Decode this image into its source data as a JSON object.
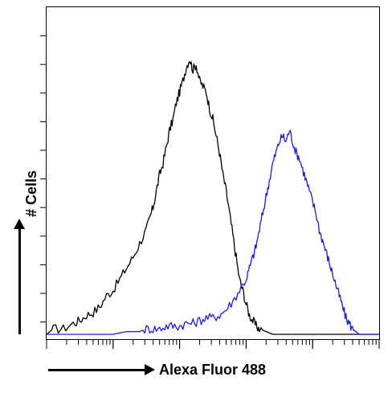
{
  "chart_data": {
    "type": "line",
    "title": "",
    "xlabel": "Alexa Fluor 488",
    "ylabel": "# Cells",
    "xlim": [
      0,
      1
    ],
    "ylim": [
      0,
      1
    ],
    "grid": false,
    "x_scale": "log",
    "series": [
      {
        "color": "#000000",
        "x": [
          0.0,
          0.02,
          0.05,
          0.08,
          0.1,
          0.12,
          0.14,
          0.16,
          0.18,
          0.2,
          0.22,
          0.24,
          0.26,
          0.28,
          0.3,
          0.31,
          0.32,
          0.33,
          0.34,
          0.35,
          0.36,
          0.37,
          0.38,
          0.39,
          0.4,
          0.41,
          0.42,
          0.43,
          0.44,
          0.45,
          0.46,
          0.47,
          0.48,
          0.49,
          0.5,
          0.51,
          0.52,
          0.53,
          0.54,
          0.55,
          0.56,
          0.57,
          0.58,
          0.59,
          0.6,
          0.61,
          0.62,
          0.63,
          0.64,
          0.66,
          0.68,
          0.7,
          0.72,
          1.0
        ],
        "values": [
          0.0,
          0.02,
          0.02,
          0.04,
          0.05,
          0.07,
          0.08,
          0.1,
          0.14,
          0.16,
          0.2,
          0.24,
          0.28,
          0.33,
          0.38,
          0.42,
          0.46,
          0.52,
          0.58,
          0.62,
          0.68,
          0.74,
          0.78,
          0.84,
          0.88,
          0.92,
          0.97,
          1.0,
          0.96,
          0.98,
          0.92,
          0.9,
          0.88,
          0.82,
          0.78,
          0.72,
          0.66,
          0.58,
          0.52,
          0.44,
          0.36,
          0.28,
          0.2,
          0.16,
          0.11,
          0.07,
          0.05,
          0.03,
          0.02,
          0.01,
          0.0,
          0.0,
          0.0,
          0.0
        ]
      },
      {
        "color": "#1a1aff",
        "x": [
          0.0,
          0.2,
          0.24,
          0.28,
          0.3,
          0.32,
          0.34,
          0.36,
          0.38,
          0.4,
          0.42,
          0.44,
          0.46,
          0.48,
          0.5,
          0.52,
          0.54,
          0.56,
          0.58,
          0.6,
          0.61,
          0.62,
          0.63,
          0.64,
          0.65,
          0.66,
          0.67,
          0.68,
          0.69,
          0.7,
          0.71,
          0.72,
          0.73,
          0.74,
          0.75,
          0.76,
          0.77,
          0.78,
          0.79,
          0.8,
          0.81,
          0.82,
          0.83,
          0.84,
          0.85,
          0.86,
          0.87,
          0.88,
          0.89,
          0.9,
          0.91,
          0.92,
          0.93,
          0.94,
          0.95,
          0.96,
          1.0
        ],
        "values": [
          0.0,
          0.0,
          0.01,
          0.01,
          0.02,
          0.02,
          0.02,
          0.03,
          0.03,
          0.03,
          0.04,
          0.04,
          0.05,
          0.06,
          0.06,
          0.07,
          0.09,
          0.12,
          0.16,
          0.2,
          0.24,
          0.28,
          0.32,
          0.38,
          0.44,
          0.5,
          0.56,
          0.62,
          0.66,
          0.7,
          0.72,
          0.7,
          0.74,
          0.7,
          0.66,
          0.64,
          0.6,
          0.56,
          0.52,
          0.48,
          0.44,
          0.38,
          0.34,
          0.3,
          0.26,
          0.22,
          0.18,
          0.14,
          0.1,
          0.06,
          0.04,
          0.02,
          0.01,
          0.0,
          0.0,
          0.0,
          0.0
        ]
      }
    ]
  }
}
